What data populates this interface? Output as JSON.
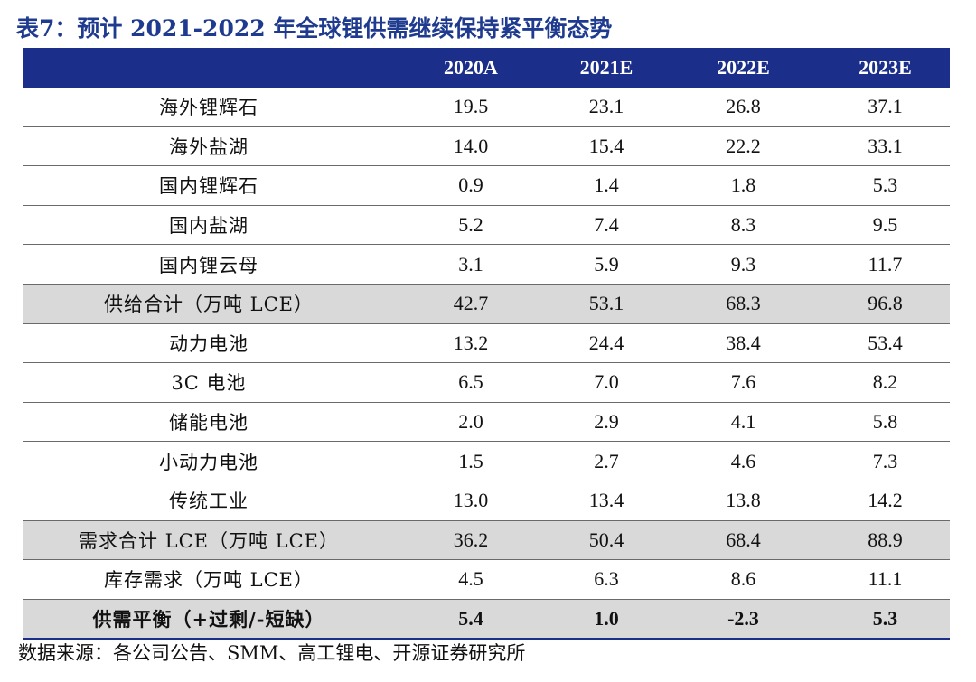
{
  "title": "表7：预计 2021-2022 年全球锂供需继续保持紧平衡态势",
  "table": {
    "headers": [
      "",
      "2020A",
      "2021E",
      "2022E",
      "2023E"
    ],
    "rows": [
      {
        "label": "海外锂辉石",
        "values": [
          "19.5",
          "23.1",
          "26.8",
          "37.1"
        ]
      },
      {
        "label": "海外盐湖",
        "values": [
          "14.0",
          "15.4",
          "22.2",
          "33.1"
        ]
      },
      {
        "label": "国内锂辉石",
        "values": [
          "0.9",
          "1.4",
          "1.8",
          "5.3"
        ]
      },
      {
        "label": "国内盐湖",
        "values": [
          "5.2",
          "7.4",
          "8.3",
          "9.5"
        ]
      },
      {
        "label": "国内锂云母",
        "values": [
          "3.1",
          "5.9",
          "9.3",
          "11.7"
        ]
      },
      {
        "label": "供给合计（万吨 LCE）",
        "values": [
          "42.7",
          "53.1",
          "68.3",
          "96.8"
        ]
      },
      {
        "label": "动力电池",
        "values": [
          "13.2",
          "24.4",
          "38.4",
          "53.4"
        ]
      },
      {
        "label": "3C 电池",
        "values": [
          "6.5",
          "7.0",
          "7.6",
          "8.2"
        ]
      },
      {
        "label": "储能电池",
        "values": [
          "2.0",
          "2.9",
          "4.1",
          "5.8"
        ]
      },
      {
        "label": "小动力电池",
        "values": [
          "1.5",
          "2.7",
          "4.6",
          "7.3"
        ]
      },
      {
        "label": "传统工业",
        "values": [
          "13.0",
          "13.4",
          "13.8",
          "14.2"
        ]
      },
      {
        "label": "需求合计 LCE（万吨 LCE）",
        "values": [
          "36.2",
          "50.4",
          "68.4",
          "88.9"
        ]
      },
      {
        "label": "库存需求（万吨 LCE）",
        "values": [
          "4.5",
          "6.3",
          "8.6",
          "11.1"
        ]
      },
      {
        "label": "供需平衡（+过剩/-短缺）",
        "values": [
          "5.4",
          "1.0",
          "-2.3",
          "5.3"
        ]
      }
    ]
  },
  "source": "数据来源：各公司公告、SMM、高工锂电、开源证券研究所",
  "colors": {
    "title": "#1f3b8f",
    "header_bg": "#1b2f8a",
    "header_text": "#ffffff",
    "shaded_row": "#d9d9d9",
    "rule": "#6a6a6a"
  }
}
